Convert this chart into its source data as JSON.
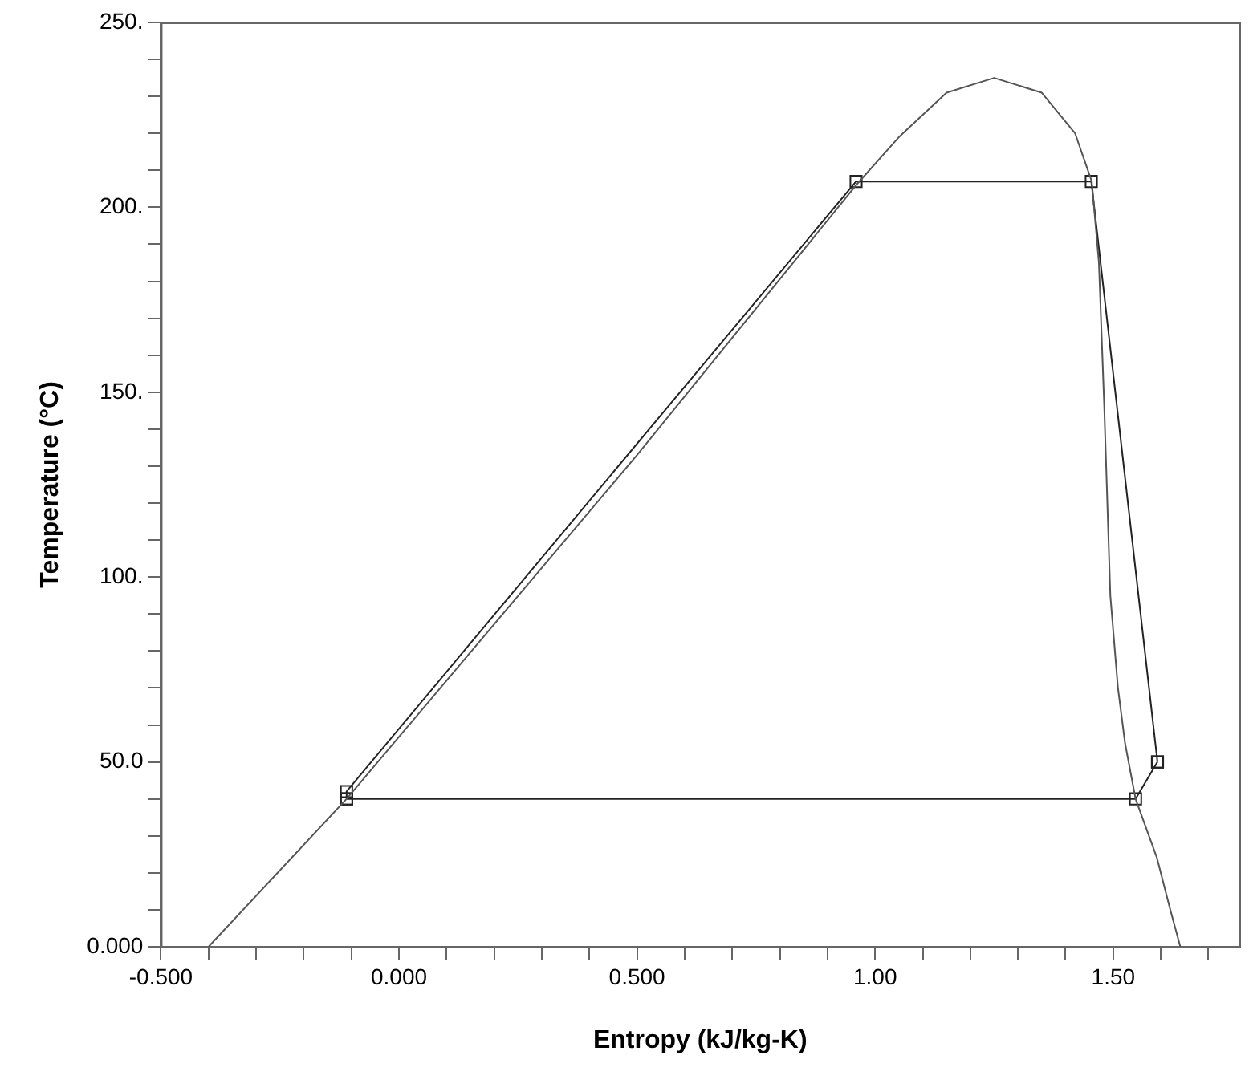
{
  "chart_data": {
    "type": "line",
    "xlabel": "Entropy (kJ/kg-K)",
    "ylabel": "Temperature (°C)",
    "xlim": [
      -0.5,
      1.765
    ],
    "ylim": [
      0,
      250
    ],
    "xticks": [
      {
        "value": -0.5,
        "label": "-0.500"
      },
      {
        "value": -0.4,
        "label": null
      },
      {
        "value": -0.3,
        "label": null
      },
      {
        "value": -0.2,
        "label": null
      },
      {
        "value": -0.1,
        "label": null
      },
      {
        "value": 0,
        "label": "0.000"
      },
      {
        "value": 0.1,
        "label": null
      },
      {
        "value": 0.2,
        "label": null
      },
      {
        "value": 0.3,
        "label": null
      },
      {
        "value": 0.4,
        "label": null
      },
      {
        "value": 0.5,
        "label": "0.500"
      },
      {
        "value": 0.6,
        "label": null
      },
      {
        "value": 0.7,
        "label": null
      },
      {
        "value": 0.8,
        "label": null
      },
      {
        "value": 0.9,
        "label": null
      },
      {
        "value": 1,
        "label": "1.00"
      },
      {
        "value": 1.1,
        "label": null
      },
      {
        "value": 1.2,
        "label": null
      },
      {
        "value": 1.3,
        "label": null
      },
      {
        "value": 1.4,
        "label": null
      },
      {
        "value": 1.5,
        "label": "1.50"
      },
      {
        "value": 1.6,
        "label": null
      },
      {
        "value": 1.7,
        "label": null
      }
    ],
    "yticks": [
      {
        "value": 0,
        "label": "0.000"
      },
      {
        "value": 10,
        "label": null
      },
      {
        "value": 20,
        "label": null
      },
      {
        "value": 30,
        "label": null
      },
      {
        "value": 40,
        "label": null
      },
      {
        "value": 50,
        "label": "50.0"
      },
      {
        "value": 60,
        "label": null
      },
      {
        "value": 70,
        "label": null
      },
      {
        "value": 80,
        "label": null
      },
      {
        "value": 90,
        "label": null
      },
      {
        "value": 100,
        "label": "100."
      },
      {
        "value": 110,
        "label": null
      },
      {
        "value": 120,
        "label": null
      },
      {
        "value": 130,
        "label": null
      },
      {
        "value": 140,
        "label": null
      },
      {
        "value": 150,
        "label": "150."
      },
      {
        "value": 160,
        "label": null
      },
      {
        "value": 170,
        "label": null
      },
      {
        "value": 180,
        "label": null
      },
      {
        "value": 190,
        "label": null
      },
      {
        "value": 200,
        "label": "200."
      },
      {
        "value": 210,
        "label": null
      },
      {
        "value": 220,
        "label": null
      },
      {
        "value": 230,
        "label": null
      },
      {
        "value": 240,
        "label": null
      },
      {
        "value": 250,
        "label": "250."
      }
    ],
    "grid": false,
    "legend": false,
    "series": [
      {
        "marker": "none",
        "color": "#555555",
        "x": [
          -0.4,
          -0.11,
          0.5,
          0.96,
          1.05,
          1.15,
          1.25,
          1.35,
          1.42,
          1.455,
          1.47,
          1.481,
          1.494,
          1.51,
          1.525,
          1.547,
          1.592,
          1.62,
          1.641
        ],
        "values": [
          0,
          40,
          133,
          206,
          219,
          231,
          235,
          231,
          220,
          207,
          185,
          147,
          95,
          70,
          55,
          40,
          24,
          10,
          0
        ]
      },
      {
        "marker": "square",
        "color": "#222222",
        "x": [
          -0.11,
          -0.11,
          0.96,
          1.454,
          1.593
        ],
        "values": [
          40,
          42,
          207,
          207,
          50
        ]
      },
      {
        "marker": "square",
        "color": "#222222",
        "x": [
          -0.11,
          1.547,
          1.593
        ],
        "values": [
          40,
          40,
          50
        ]
      }
    ]
  }
}
